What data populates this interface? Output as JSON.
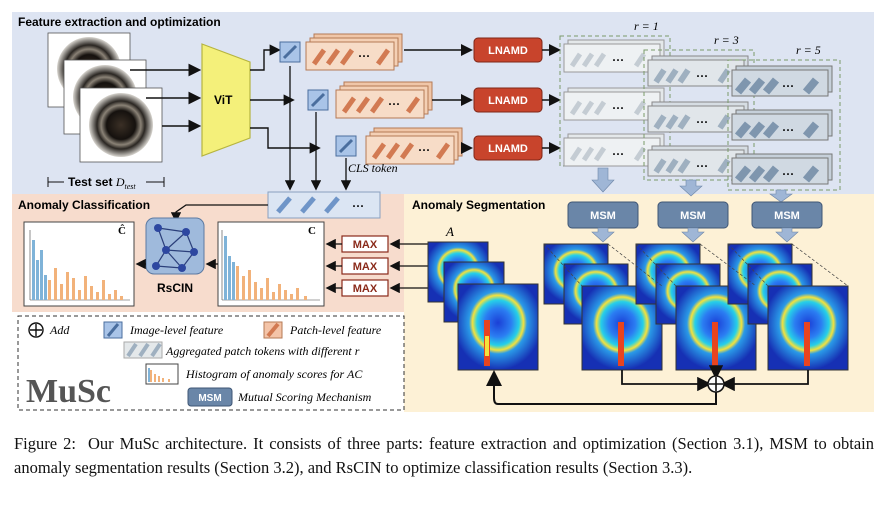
{
  "figure": {
    "panels": {
      "feature": "Feature extraction and optimization",
      "classification": "Anomaly Classification",
      "segmentation": "Anomaly Segmentation"
    },
    "test_set": "Test set",
    "test_set_symbol": "D",
    "test_set_sub": "test",
    "vit": "ViT",
    "lnamd": "LNAMD",
    "msm": "MSM",
    "cls_token": "CLS token",
    "rscin": "RsCIN",
    "max": "MAX",
    "c_label": "C",
    "c_hat_label": "Ĉ",
    "a_label": "A",
    "r_labels": [
      "r = 1",
      "r = 3",
      "r = 5"
    ],
    "ellipsis": "···",
    "legend": {
      "add": "Add",
      "image_feature": "Image-level feature",
      "patch_feature": "Patch-level feature",
      "aggregated": "Aggregated patch tokens with different",
      "aggregated_var": "r",
      "histogram": "Histogram of anomaly scores for AC",
      "msm_desc": "Mutual Scoring Mechanism",
      "msm_badge": "MSM"
    },
    "brand": "MuSc",
    "colors": {
      "top_bg": "#dde4f2",
      "class_bg": "#f7dccd",
      "seg_bg": "#fdf1d6",
      "lnamd": "#c8442c",
      "msm": "#6a86a8",
      "vit": "#f4f07a"
    }
  },
  "caption": {
    "label": "Figure 2:",
    "text": "Our MuSc architecture. It consists of three parts: feature extraction and optimization (Section 3.1), MSM to obtain anomaly segmentation results (Section 3.2), and RsCIN to optimize classification results (Section 3.3)."
  }
}
